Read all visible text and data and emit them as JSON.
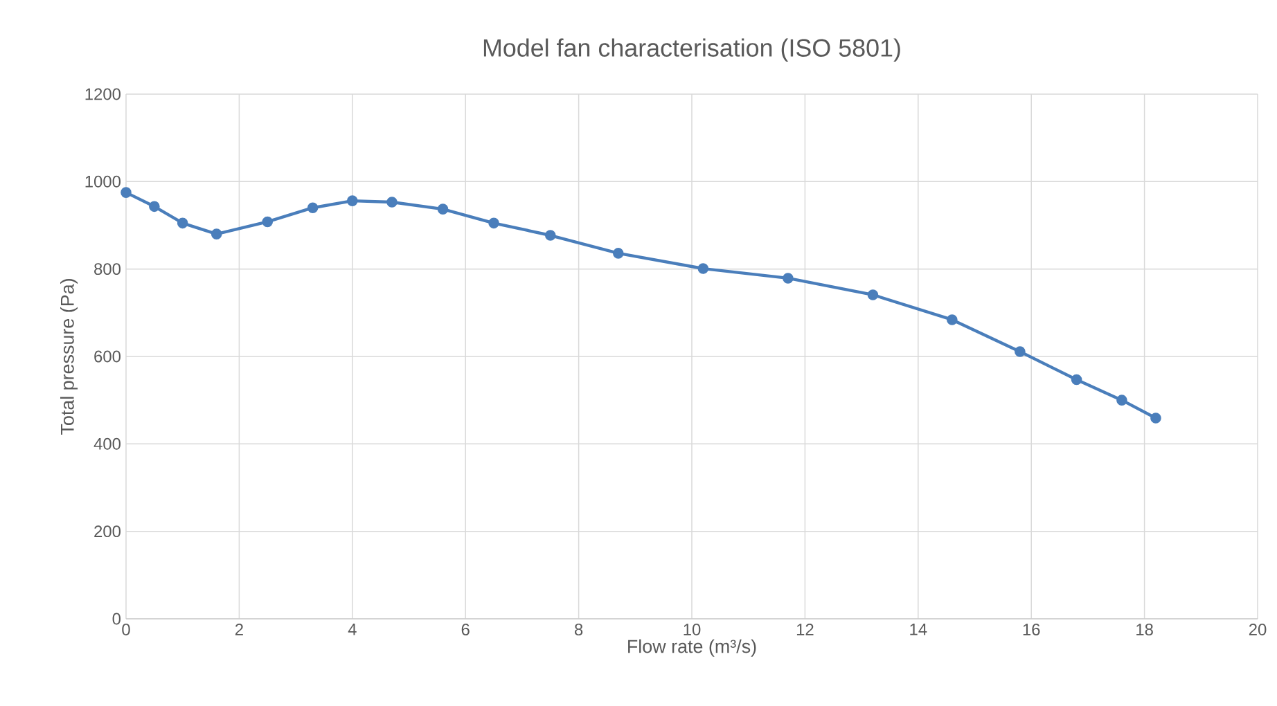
{
  "chart_data": {
    "type": "line",
    "title": "Model fan characterisation (ISO 5801)",
    "xlabel": "Flow rate (m³/s)",
    "ylabel": "Total pressure (Pa)",
    "xlim": [
      0,
      20
    ],
    "xticks": [
      0,
      2,
      4,
      6,
      8,
      10,
      12,
      14,
      16,
      18,
      20
    ],
    "ylim": [
      0,
      1200
    ],
    "yticks": [
      0,
      200,
      400,
      600,
      800,
      1000,
      1200
    ],
    "grid": true,
    "marker": "circle",
    "line_style": "solid",
    "series": [
      {
        "color": "#4a7ebb",
        "x": [
          0,
          0.5,
          1.0,
          1.6,
          2.5,
          3.3,
          4.0,
          4.7,
          5.6,
          6.5,
          7.5,
          8.7,
          10.2,
          11.7,
          13.2,
          14.6,
          15.8,
          16.8,
          17.6,
          18.2
        ],
        "values": [
          975,
          943,
          905,
          880,
          908,
          940,
          956,
          953,
          937,
          905,
          877,
          836,
          801,
          779,
          741,
          684,
          611,
          547,
          500,
          459
        ]
      }
    ]
  }
}
